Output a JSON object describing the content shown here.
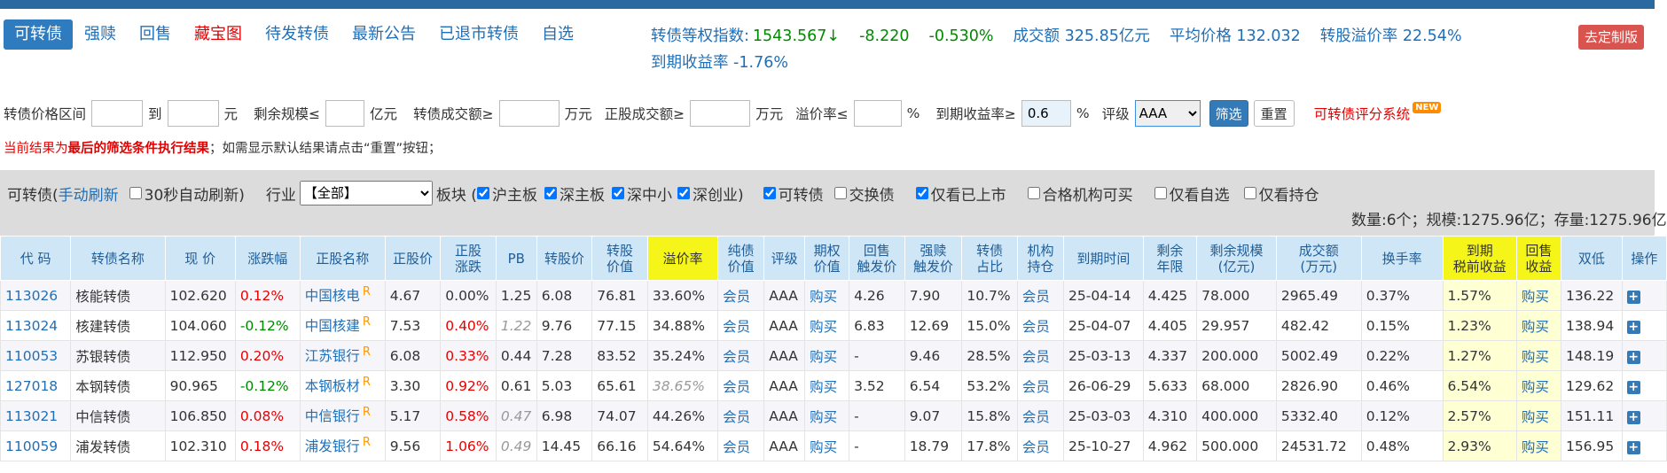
{
  "nav": {
    "tabs": [
      {
        "label": "可转债",
        "active": true
      },
      {
        "label": "强赎"
      },
      {
        "label": "回售"
      },
      {
        "label": "藏宝图",
        "red": true
      },
      {
        "label": "待发转债"
      },
      {
        "label": "最新公告"
      },
      {
        "label": "已退市转债"
      },
      {
        "label": "自选"
      }
    ]
  },
  "index": {
    "label": "转债等权指数:",
    "value": "1543.567↓",
    "change": "-8.220",
    "change_pct": "-0.530%",
    "turnover": "成交额 325.85亿元",
    "avg_price": "平均价格 132.032",
    "premium": "转股溢价率 22.54%",
    "ytm": "到期收益率 -1.76%"
  },
  "custom_button": "去定制版",
  "filters": {
    "price_range": "转债价格区间",
    "to": "到",
    "yuan": "元",
    "remaining_scale": "剩余规模≤",
    "yi_yuan": "亿元",
    "bond_turnover": "转债成交额≥",
    "wan_yuan": "万元",
    "stock_turnover": "正股成交额≥",
    "wan_yuan2": "万元",
    "premium_rate": "溢价率≤",
    "pct": "%",
    "ytm_label": "到期收益率≥",
    "ytm_value": "0.6",
    "pct2": "%",
    "rating": "评级",
    "rating_value": "AAA",
    "filter_button": "筛选",
    "reset_button": "重置",
    "score_link": "可转债评分系统",
    "new_badge": "NEW"
  },
  "notice": {
    "part1": "当前结果为",
    "part2": "最后的筛选条件执行结果",
    "part3": "；如需显示默认结果请点击“重置”按钮；"
  },
  "panel": {
    "label": "可转债(",
    "refresh": "手动刷新",
    "auto_refresh": "30秒自动刷新)",
    "industry": "行业",
    "industry_value": "【全部】",
    "board": "板块 (",
    "sh_main": "沪主板",
    "sz_main": "深主板",
    "sz_sme": "深中小",
    "sz_gem": "深创业)",
    "convertible": "可转债",
    "exchangeable": "交换债",
    "listed_only": "仅看已上市",
    "qualified": "合格机构可买",
    "watchlist_only": "仅看自选",
    "holdings_only": "仅看持仓",
    "stats": "数量:6个；规模:1275.96亿；存量:1275.96亿"
  },
  "table": {
    "headers": [
      "代 码",
      "转债名称",
      "现 价",
      "涨跌幅",
      "正股名称",
      "正股价",
      "正股\n涨跌",
      "PB",
      "转股价",
      "转股\n价值",
      "溢价率",
      "纯债\n价值",
      "评级",
      "期权\n价值",
      "回售\n触发价",
      "强赎\n触发价",
      "转债\n占比",
      "机构\n持仓",
      "到期时间",
      "剩余\n年限",
      "剩余规模\n(亿元)",
      "成交额\n(万元)",
      "换手率",
      "到期\n税前收益",
      "回售\n收益",
      "双低",
      "操作"
    ],
    "rows": [
      {
        "code": "113026",
        "name": "核能转债",
        "price": "102.620",
        "chg": "0.12%",
        "stock": "中国核电",
        "sprice": "4.67",
        "schg": "0.00%",
        "pb": "1.25",
        "conv": "6.08",
        "cval": "76.81",
        "prem": "33.60%",
        "bond": "会员",
        "rating": "AAA",
        "opt": "购买",
        "put": "4.26",
        "call": "7.90",
        "ratio": "10.7%",
        "inst": "会员",
        "mat": "25-04-14",
        "years": "4.425",
        "scale": "78.000",
        "turnover": "2965.49",
        "turn_rate": "0.37%",
        "ytm": "1.57%",
        "put_yield": "购买",
        "dual": "136.22"
      },
      {
        "code": "113024",
        "name": "核建转债",
        "price": "104.060",
        "chg": "-0.12%",
        "stock": "中国核建",
        "sprice": "7.53",
        "schg": "0.40%",
        "pb": "1.22",
        "conv": "9.76",
        "cval": "77.15",
        "prem": "34.88%",
        "bond": "会员",
        "rating": "AAA",
        "opt": "购买",
        "put": "6.83",
        "call": "12.69",
        "ratio": "15.0%",
        "inst": "会员",
        "mat": "25-04-07",
        "years": "4.405",
        "scale": "29.957",
        "turnover": "482.42",
        "turn_rate": "0.15%",
        "ytm": "1.23%",
        "put_yield": "购买",
        "dual": "138.94"
      },
      {
        "code": "110053",
        "name": "苏银转债",
        "price": "112.950",
        "chg": "0.20%",
        "stock": "江苏银行",
        "sprice": "6.08",
        "schg": "0.33%",
        "pb": "0.44",
        "conv": "7.28",
        "cval": "83.52",
        "prem": "35.24%",
        "bond": "会员",
        "rating": "AAA",
        "opt": "购买",
        "put": "-",
        "call": "9.46",
        "ratio": "28.5%",
        "inst": "会员",
        "mat": "25-03-13",
        "years": "4.337",
        "scale": "200.000",
        "turnover": "5002.49",
        "turn_rate": "0.22%",
        "ytm": "1.27%",
        "put_yield": "购买",
        "dual": "148.19"
      },
      {
        "code": "127018",
        "name": "本钢转债",
        "price": "90.965",
        "chg": "-0.12%",
        "stock": "本钢板材",
        "sprice": "3.30",
        "schg": "0.92%",
        "pb": "0.61",
        "conv": "5.03",
        "cval": "65.61",
        "prem": "38.65%",
        "bond": "会员",
        "rating": "AAA",
        "opt": "购买",
        "put": "3.52",
        "call": "6.54",
        "ratio": "53.2%",
        "inst": "会员",
        "mat": "26-06-29",
        "years": "5.633",
        "scale": "68.000",
        "turnover": "2826.90",
        "turn_rate": "0.46%",
        "ytm": "6.54%",
        "put_yield": "购买",
        "dual": "129.62"
      },
      {
        "code": "113021",
        "name": "中信转债",
        "price": "106.850",
        "chg": "0.08%",
        "stock": "中信银行",
        "sprice": "5.17",
        "schg": "0.58%",
        "pb": "0.47",
        "conv": "6.98",
        "cval": "74.07",
        "prem": "44.26%",
        "bond": "会员",
        "rating": "AAA",
        "opt": "购买",
        "put": "-",
        "call": "9.07",
        "ratio": "15.8%",
        "inst": "会员",
        "mat": "25-03-03",
        "years": "4.310",
        "scale": "400.000",
        "turnover": "5332.40",
        "turn_rate": "0.12%",
        "ytm": "2.57%",
        "put_yield": "购买",
        "dual": "151.11"
      },
      {
        "code": "110059",
        "name": "浦发转债",
        "price": "102.310",
        "chg": "0.18%",
        "stock": "浦发银行",
        "sprice": "9.56",
        "schg": "1.06%",
        "pb": "0.49",
        "conv": "14.45",
        "cval": "66.16",
        "prem": "54.64%",
        "bond": "会员",
        "rating": "AAA",
        "opt": "购买",
        "put": "-",
        "call": "18.79",
        "ratio": "17.8%",
        "inst": "会员",
        "mat": "25-10-27",
        "years": "4.962",
        "scale": "500.000",
        "turnover": "24531.72",
        "turn_rate": "0.48%",
        "ytm": "2.93%",
        "put_yield": "购买",
        "dual": "156.95"
      }
    ],
    "r_mark": "R",
    "plus": "+"
  }
}
